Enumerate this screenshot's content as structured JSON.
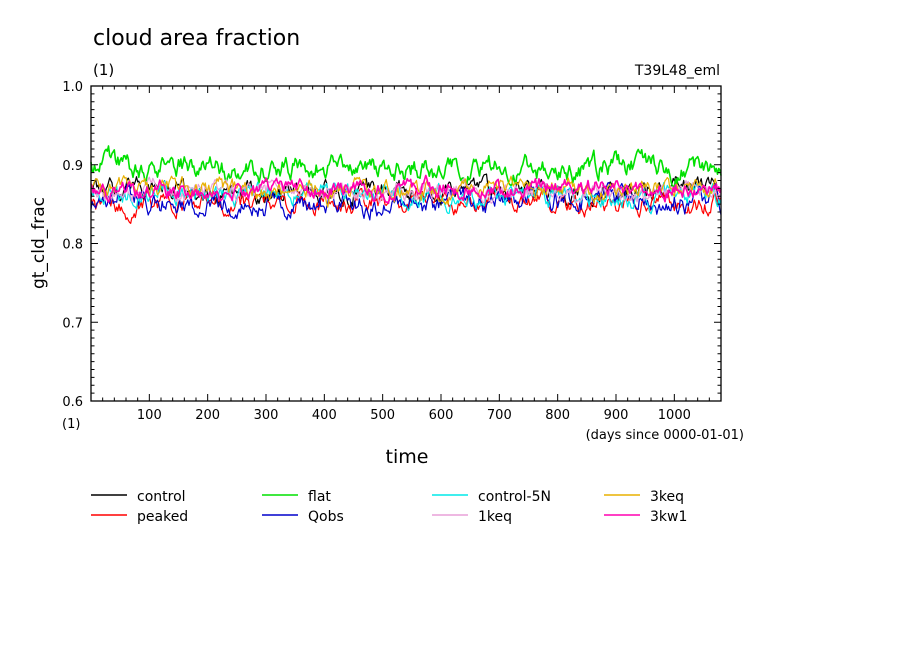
{
  "chart_data": {
    "type": "line",
    "title": "cloud area fraction",
    "subtitle": "(1)",
    "run_label": "T39L48_eml",
    "ylabel": "gt_cld_frac",
    "xlabel": "time",
    "x_units_label": "(days since 0000-01-01)",
    "y_units_label": "(1)",
    "xlim": [
      0,
      1080
    ],
    "ylim": [
      0.6,
      1.0
    ],
    "x_ticks": [
      100,
      200,
      300,
      400,
      500,
      600,
      700,
      800,
      900,
      1000
    ],
    "x_tick_labels": [
      "100",
      "200",
      "300",
      "400",
      "500",
      "600",
      "700",
      "800",
      "900",
      "1000"
    ],
    "y_ticks": [
      0.6,
      0.7,
      0.8,
      0.9,
      1.0
    ],
    "y_tick_labels": [
      "0.6",
      "0.7",
      "0.8",
      "0.9",
      "1.0"
    ],
    "grid": false,
    "legend_position": "bottom",
    "series": [
      {
        "name": "control",
        "color": "#000000",
        "mean": 0.866,
        "amp": 0.018,
        "seed": 11
      },
      {
        "name": "peaked",
        "color": "#ff0000",
        "mean": 0.852,
        "amp": 0.018,
        "seed": 23
      },
      {
        "name": "flat",
        "color": "#00e000",
        "mean": 0.898,
        "amp": 0.02,
        "seed": 37
      },
      {
        "name": "Qobs",
        "color": "#0000cc",
        "mean": 0.852,
        "amp": 0.02,
        "seed": 41
      },
      {
        "name": "control-5N",
        "color": "#00e8e8",
        "mean": 0.862,
        "amp": 0.017,
        "seed": 53
      },
      {
        "name": "1keq",
        "color": "#e8a0d8",
        "mean": 0.866,
        "amp": 0.016,
        "seed": 67
      },
      {
        "name": "3keq",
        "color": "#e8b000",
        "mean": 0.868,
        "amp": 0.016,
        "seed": 79
      },
      {
        "name": "3kw1",
        "color": "#ff00b0",
        "mean": 0.87,
        "amp": 0.015,
        "seed": 97
      }
    ]
  }
}
